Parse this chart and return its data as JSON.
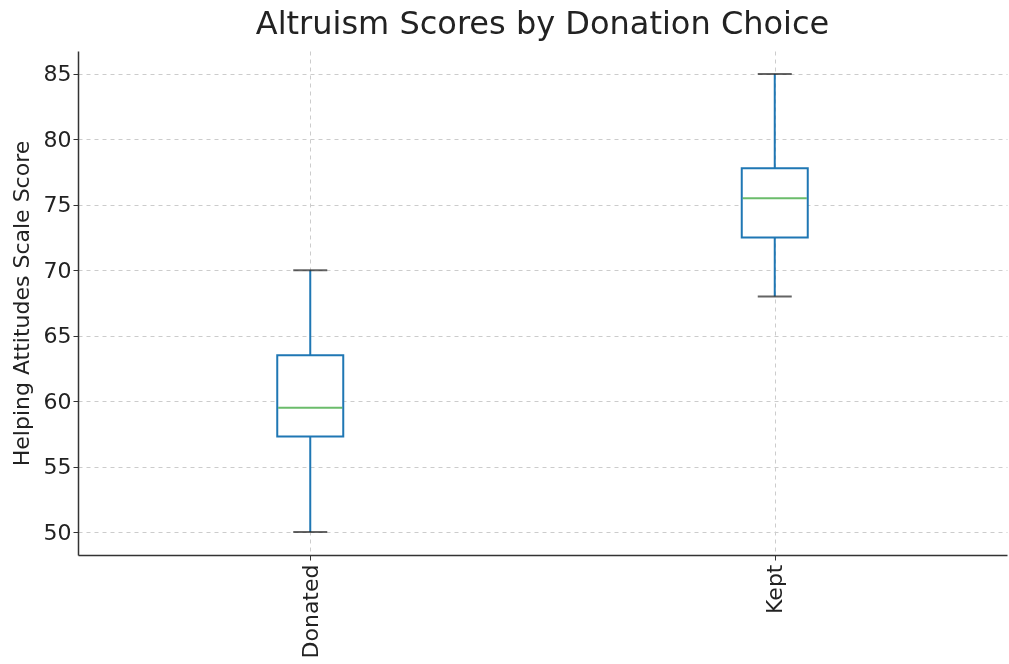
{
  "chart_data": {
    "type": "box",
    "title": "Altruism Scores by Donation Choice",
    "ylabel": "Helping Attitudes Scale Score",
    "categories": [
      "Donated",
      "Kept"
    ],
    "series": [
      {
        "color": "#1f77b4",
        "boxes": [
          {
            "low": 50,
            "q1": 57.3,
            "median": 59.5,
            "q3": 63.5,
            "high": 70
          },
          {
            "low": 68,
            "q1": 72.5,
            "median": 75.5,
            "q3": 77.8,
            "high": 85
          }
        ]
      }
    ],
    "ylim": [
      48.25,
      86.75
    ],
    "yticks": [
      50,
      55,
      60,
      65,
      70,
      75,
      80,
      85
    ],
    "grid": true
  }
}
